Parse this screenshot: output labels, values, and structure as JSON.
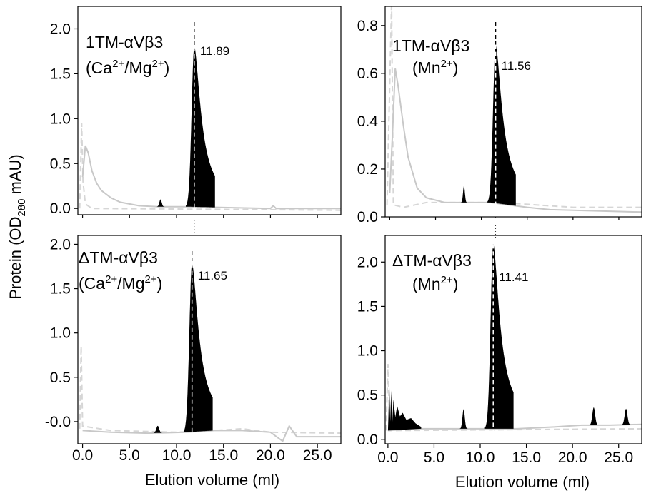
{
  "figure": {
    "y_axis_title": "Protein (OD",
    "y_axis_sub": "280",
    "y_axis_unit": " mAU)",
    "x_axis_title_left": "Elution volume (ml)",
    "x_axis_title_right": "Elution volume (ml)"
  },
  "colors": {
    "peak_fill": "#000000",
    "baseline": "#c8c8c8",
    "dashed_trace": "#d6d6d6",
    "frame": "#000000"
  },
  "chart_data": [
    {
      "type": "area",
      "id": "top-left",
      "label_line1": "1TM-αVβ3",
      "label_line2_pre": "(Ca",
      "label_line2_sup1": "2+",
      "label_line2_mid": "/Mg",
      "label_line2_sup2": "2+",
      "label_line2_post": ")",
      "peak_label": "11.89",
      "peak_x": 11.89,
      "peak_height": 1.8,
      "xlim": [
        -0.5,
        27.5
      ],
      "ylim": [
        -0.07,
        2.25
      ],
      "yticks": [
        0.0,
        0.5,
        1.0,
        1.5,
        2.0
      ],
      "ytick_labels": [
        "0.0",
        "0.5",
        "1.0",
        "1.5",
        "2.0"
      ],
      "xticks": [
        0,
        5,
        10,
        15,
        20,
        25
      ],
      "xtick_labels": [],
      "baseline": [
        [
          0.0,
          0.35
        ],
        [
          0.3,
          0.7
        ],
        [
          0.6,
          0.62
        ],
        [
          1.0,
          0.42
        ],
        [
          1.5,
          0.28
        ],
        [
          2.0,
          0.2
        ],
        [
          3.0,
          0.12
        ],
        [
          4.0,
          0.07
        ],
        [
          6.0,
          0.03
        ],
        [
          8.0,
          0.02
        ],
        [
          11.0,
          0.02
        ],
        [
          15.0,
          0.01
        ],
        [
          20.0,
          0.0
        ],
        [
          20.3,
          0.03
        ],
        [
          20.6,
          0.0
        ],
        [
          27.5,
          0.0
        ]
      ],
      "dashed_trace": [
        [
          -0.3,
          0.0
        ],
        [
          -0.1,
          0.95
        ],
        [
          0.05,
          0.3
        ],
        [
          0.3,
          0.05
        ],
        [
          1.0,
          0.0
        ],
        [
          27.5,
          -0.02
        ]
      ],
      "minor_peaks": [
        [
          8.3,
          0.08,
          0.25
        ]
      ],
      "baseline_marks": [
        [
          20.2,
          0.03
        ]
      ]
    },
    {
      "type": "area",
      "id": "top-right",
      "label_line1": "1TM-αVβ3",
      "label_line2_pre": "(Mn",
      "label_line2_sup1": "2+",
      "label_line2_post": ")",
      "peak_label": "11.56",
      "peak_x": 11.56,
      "peak_height": 0.72,
      "xlim": [
        -0.5,
        27.5
      ],
      "ylim": [
        0.0,
        0.88
      ],
      "yticks": [
        0.0,
        0.2,
        0.4,
        0.6,
        0.8
      ],
      "ytick_labels": [
        "0.0",
        "0.2",
        "0.4",
        "0.6",
        "0.8"
      ],
      "xticks": [
        0,
        5,
        10,
        15,
        20,
        25
      ],
      "xtick_labels": [],
      "baseline": [
        [
          0.0,
          0.1
        ],
        [
          0.3,
          0.35
        ],
        [
          0.6,
          0.62
        ],
        [
          0.9,
          0.55
        ],
        [
          1.5,
          0.38
        ],
        [
          2.0,
          0.25
        ],
        [
          3.0,
          0.12
        ],
        [
          4.0,
          0.08
        ],
        [
          6.0,
          0.06
        ],
        [
          8.0,
          0.06
        ],
        [
          11.0,
          0.06
        ],
        [
          15.0,
          0.04
        ],
        [
          17.5,
          0.03
        ],
        [
          27.5,
          0.02
        ]
      ],
      "dashed_trace": [
        [
          -0.3,
          0.05
        ],
        [
          0.2,
          0.9
        ],
        [
          0.4,
          0.05
        ],
        [
          1.5,
          0.04
        ],
        [
          4.0,
          0.06
        ],
        [
          8.0,
          0.06
        ],
        [
          12.0,
          0.06
        ],
        [
          20.0,
          0.04
        ],
        [
          27.5,
          0.04
        ]
      ],
      "minor_peaks": [
        [
          8.1,
          0.07,
          0.2
        ]
      ],
      "baseline_marks": []
    },
    {
      "type": "area",
      "id": "bottom-left",
      "label_line1": "ΔTM-αVβ3",
      "label_line2_pre": "(Ca",
      "label_line2_sup1": "2+",
      "label_line2_mid": "/Mg",
      "label_line2_sup2": "2+",
      "label_line2_post": ")",
      "peak_label": "11.65",
      "peak_x": 11.65,
      "peak_height": 1.78,
      "xlim": [
        -0.5,
        27.5
      ],
      "ylim": [
        -0.25,
        2.1
      ],
      "yticks": [
        0.0,
        0.5,
        1.0,
        1.5,
        2.0
      ],
      "ytick_labels": [
        "-0.0",
        "0.5",
        "1.0",
        "1.5",
        "2.0"
      ],
      "xticks": [
        0,
        5,
        10,
        15,
        20,
        25
      ],
      "xtick_labels": [
        "0.0",
        "5.0",
        "10.0",
        "15.0",
        "20.0",
        "25.0"
      ],
      "baseline": [
        [
          0.0,
          -0.1
        ],
        [
          3.0,
          -0.12
        ],
        [
          7.0,
          -0.13
        ],
        [
          11.0,
          -0.12
        ],
        [
          14.0,
          -0.1
        ],
        [
          17.0,
          -0.1
        ],
        [
          20.0,
          -0.12
        ],
        [
          21.3,
          -0.22
        ],
        [
          22.0,
          -0.05
        ],
        [
          22.8,
          -0.17
        ],
        [
          27.5,
          -0.17
        ]
      ],
      "dashed_trace": [
        [
          -0.3,
          -0.08
        ],
        [
          -0.15,
          0.85
        ],
        [
          0.0,
          -0.05
        ],
        [
          3.0,
          -0.1
        ],
        [
          10.0,
          -0.12
        ],
        [
          14.0,
          -0.1
        ],
        [
          17.0,
          -0.08
        ],
        [
          20.0,
          -0.12
        ],
        [
          27.5,
          -0.13
        ]
      ],
      "minor_peaks": [
        [
          8.0,
          0.08,
          0.3
        ]
      ],
      "baseline_marks": []
    },
    {
      "type": "area",
      "id": "bottom-right",
      "label_line1": "ΔTM-αVβ3",
      "label_line2_pre": "(Mn",
      "label_line2_sup1": "2+",
      "label_line2_post": ")",
      "peak_label": "11.41",
      "peak_x": 11.41,
      "peak_height": 2.2,
      "xlim": [
        -0.3,
        27.5
      ],
      "ylim": [
        -0.05,
        2.3
      ],
      "yticks": [
        0.0,
        0.5,
        1.0,
        1.5,
        2.0
      ],
      "ytick_labels": [
        "0.0",
        "0.5",
        "1.0",
        "1.5",
        "2.0"
      ],
      "xticks": [
        0,
        5,
        10,
        15,
        20,
        25
      ],
      "xtick_labels": [
        "0.0",
        "5.0",
        "10.0",
        "15.0",
        "20.0",
        "25.0"
      ],
      "baseline": [
        [
          0.0,
          0.1
        ],
        [
          3.0,
          0.12
        ],
        [
          6.0,
          0.12
        ],
        [
          10.0,
          0.12
        ],
        [
          14.0,
          0.12
        ],
        [
          18.0,
          0.14
        ],
        [
          21.0,
          0.16
        ],
        [
          24.0,
          0.16
        ],
        [
          27.5,
          0.17
        ]
      ],
      "dashed_trace": [
        [
          -0.2,
          0.1
        ],
        [
          0.0,
          0.85
        ],
        [
          0.2,
          0.1
        ],
        [
          27.5,
          0.12
        ]
      ],
      "minor_peaks": [
        [
          8.2,
          0.22,
          0.25
        ],
        [
          22.3,
          0.2,
          0.3
        ],
        [
          25.8,
          0.18,
          0.3
        ]
      ],
      "early_cluster": true,
      "baseline_marks": []
    }
  ]
}
